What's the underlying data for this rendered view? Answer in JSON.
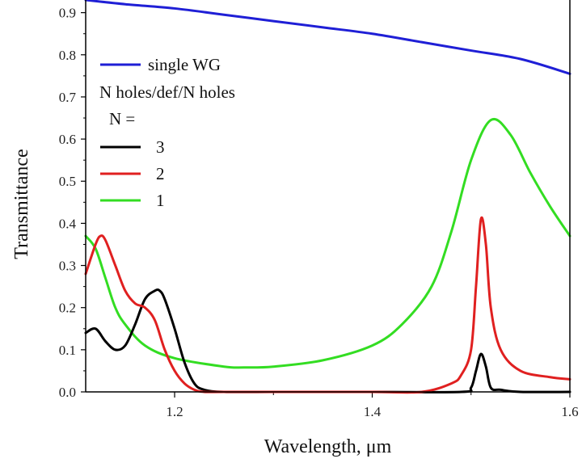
{
  "chart_data": {
    "type": "line",
    "xlabel": "Wavelength, μm",
    "ylabel": "Transmittance",
    "xlim": [
      1.11,
      1.6
    ],
    "ylim": [
      0.0,
      0.93
    ],
    "x_ticks": [
      1.2,
      1.4,
      1.6
    ],
    "x_tick_labels": [
      "1.2",
      "1.4",
      "1.6"
    ],
    "y_ticks": [
      0.0,
      0.1,
      0.2,
      0.3,
      0.4,
      0.5,
      0.6,
      0.7,
      0.8,
      0.9
    ],
    "y_tick_labels": [
      "0.0",
      "0.1",
      "0.2",
      "0.3",
      "0.4",
      "0.5",
      "0.6",
      "0.7",
      "0.8",
      "0.9"
    ],
    "grid": false,
    "legend_position": "top-left",
    "legend": {
      "header_line1": "N holes/def/N holes",
      "header_line2": "N ="
    },
    "series": [
      {
        "name": "single WG",
        "color": "#1f1fd6",
        "x": [
          1.11,
          1.15,
          1.2,
          1.25,
          1.3,
          1.35,
          1.4,
          1.45,
          1.5,
          1.55,
          1.6
        ],
        "y": [
          0.93,
          0.92,
          0.91,
          0.895,
          0.88,
          0.865,
          0.85,
          0.83,
          0.81,
          0.79,
          0.755
        ]
      },
      {
        "name": "3",
        "color": "#000000",
        "x": [
          1.11,
          1.12,
          1.13,
          1.14,
          1.15,
          1.16,
          1.17,
          1.18,
          1.185,
          1.19,
          1.2,
          1.21,
          1.22,
          1.23,
          1.25,
          1.3,
          1.4,
          1.49,
          1.5,
          1.505,
          1.51,
          1.515,
          1.52,
          1.53,
          1.55,
          1.6
        ],
        "y": [
          0.14,
          0.15,
          0.12,
          0.1,
          0.11,
          0.16,
          0.22,
          0.24,
          0.24,
          0.22,
          0.15,
          0.07,
          0.02,
          0.005,
          0.0,
          0.0,
          0.0,
          0.0,
          0.01,
          0.05,
          0.09,
          0.06,
          0.01,
          0.005,
          0.0,
          0.0
        ]
      },
      {
        "name": "2",
        "color": "#e02020",
        "x": [
          1.11,
          1.12,
          1.125,
          1.13,
          1.14,
          1.15,
          1.16,
          1.17,
          1.18,
          1.19,
          1.2,
          1.21,
          1.22,
          1.23,
          1.25,
          1.3,
          1.4,
          1.45,
          1.48,
          1.49,
          1.5,
          1.505,
          1.51,
          1.515,
          1.52,
          1.53,
          1.55,
          1.58,
          1.6
        ],
        "y": [
          0.28,
          0.35,
          0.37,
          0.36,
          0.3,
          0.24,
          0.21,
          0.2,
          0.17,
          0.1,
          0.05,
          0.02,
          0.005,
          0.0,
          0.0,
          0.0,
          0.0,
          0.0,
          0.02,
          0.04,
          0.1,
          0.25,
          0.41,
          0.35,
          0.2,
          0.1,
          0.05,
          0.035,
          0.03
        ]
      },
      {
        "name": "1",
        "color": "#33dd22",
        "x": [
          1.11,
          1.12,
          1.13,
          1.14,
          1.15,
          1.17,
          1.2,
          1.25,
          1.27,
          1.3,
          1.35,
          1.4,
          1.43,
          1.46,
          1.48,
          1.5,
          1.52,
          1.54,
          1.56,
          1.58,
          1.6
        ],
        "y": [
          0.37,
          0.34,
          0.27,
          0.2,
          0.16,
          0.11,
          0.08,
          0.06,
          0.058,
          0.06,
          0.075,
          0.11,
          0.16,
          0.25,
          0.38,
          0.55,
          0.645,
          0.61,
          0.52,
          0.44,
          0.37
        ]
      }
    ]
  }
}
